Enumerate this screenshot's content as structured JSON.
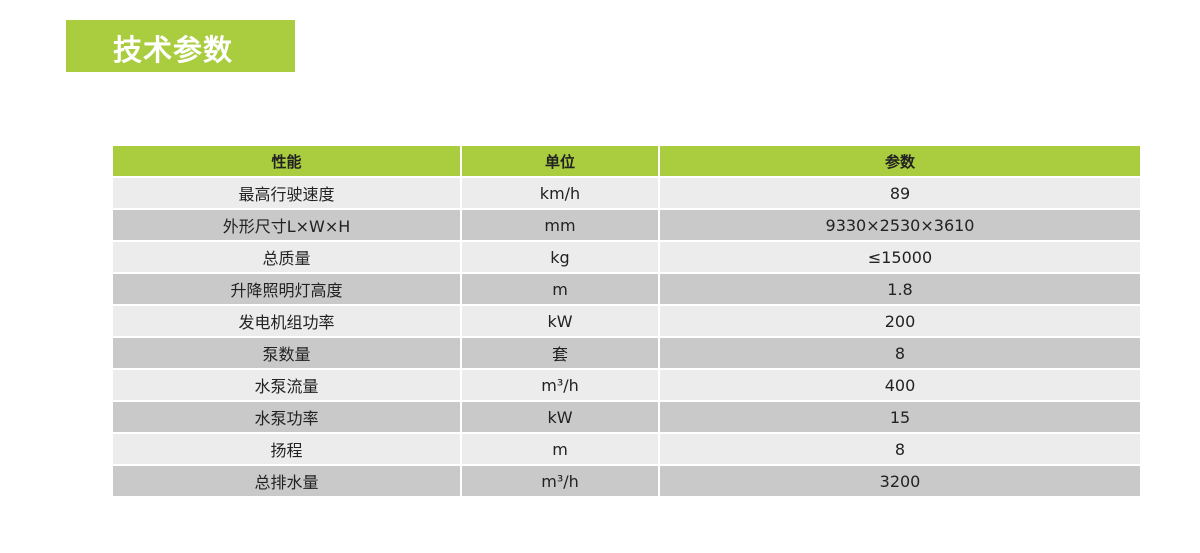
{
  "title": "技术参数",
  "colors": {
    "accent": "#a9cd3f",
    "row_light": "#ececec",
    "row_dark": "#c9c9c9"
  },
  "table": {
    "headers": [
      "性能",
      "单位",
      "参数"
    ],
    "rows": [
      [
        "最高行驶速度",
        "km/h",
        "89"
      ],
      [
        "外形尺寸L×W×H",
        "mm",
        "9330×2530×3610"
      ],
      [
        "总质量",
        "kg",
        "≤15000"
      ],
      [
        "升降照明灯高度",
        "m",
        "1.8"
      ],
      [
        "发电机组功率",
        "kW",
        "200"
      ],
      [
        "泵数量",
        "套",
        "8"
      ],
      [
        "水泵流量",
        "m³/h",
        "400"
      ],
      [
        "水泵功率",
        "kW",
        "15"
      ],
      [
        "扬程",
        "m",
        "8"
      ],
      [
        "总排水量",
        "m³/h",
        "3200"
      ]
    ]
  }
}
